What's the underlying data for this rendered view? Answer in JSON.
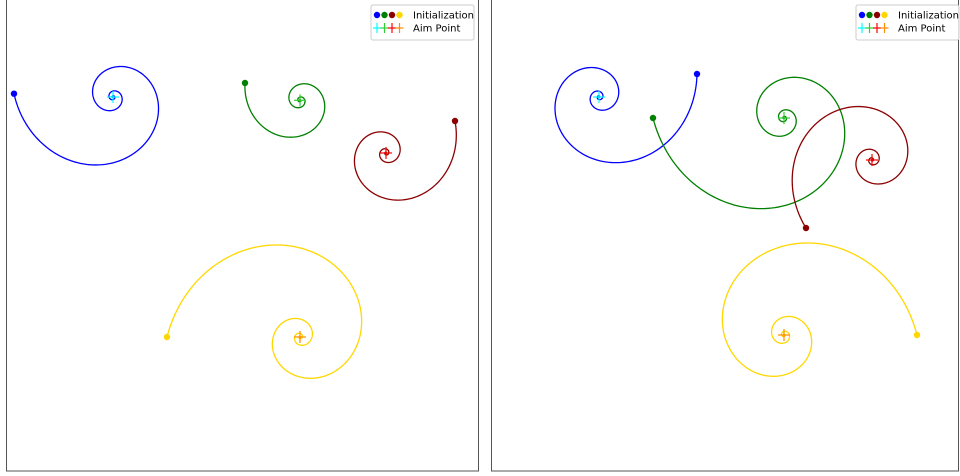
{
  "chart_data": [
    {
      "type": "line",
      "panel": "left",
      "title": "",
      "xlabel": "",
      "ylabel": "",
      "grid": false,
      "axis_ticks": false,
      "legend_position": "top-right",
      "legend": {
        "entries": [
          {
            "label": "Initialization",
            "marker": "dot",
            "colors": [
              "#0000ff",
              "#008000",
              "#8b0000",
              "#ffd700"
            ]
          },
          {
            "label": "Aim Point",
            "marker": "plus",
            "colors": [
              "#00ffff",
              "#32cd32",
              "#ff0000",
              "#ff8c00"
            ]
          }
        ]
      },
      "series": [
        {
          "color": "#0000ff",
          "aim_color": "#00ffff",
          "aim_point": [
            0,
            0
          ],
          "start": [
            -99,
            3.3
          ],
          "turns": 6.9,
          "direction": "ccw"
        },
        {
          "color": "#008000",
          "aim_color": "#32cd32",
          "aim_point": [
            187,
            -3.3
          ],
          "start": [
            132,
            14
          ],
          "turns": 7.8,
          "direction": "ccw"
        },
        {
          "color": "#8b0000",
          "aim_color": "#ff0000",
          "aim_point": [
            273,
            -56
          ],
          "start": [
            342,
            -24
          ],
          "turns": 7.4,
          "direction": "cw"
        },
        {
          "color": "#ffd700",
          "aim_color": "#ff8c00",
          "aim_point": [
            187,
            -240
          ],
          "start": [
            54,
            -240
          ],
          "turns": 7.6,
          "direction": "cw"
        }
      ]
    },
    {
      "type": "line",
      "panel": "right",
      "title": "",
      "xlabel": "",
      "ylabel": "",
      "grid": false,
      "axis_ticks": false,
      "legend_position": "top-right",
      "legend": {
        "entries": [
          {
            "label": "Initialization",
            "marker": "dot",
            "colors": [
              "#0000ff",
              "#008000",
              "#8b0000",
              "#ffd700"
            ]
          },
          {
            "label": "Aim Point",
            "marker": "plus",
            "colors": [
              "#00ffff",
              "#32cd32",
              "#ff0000",
              "#ff8c00"
            ]
          }
        ]
      },
      "series": [
        {
          "color": "#0000ff",
          "aim_color": "#00ffff",
          "aim_point": [
            0,
            0
          ],
          "start": [
            98,
            23
          ],
          "turns": 6.6,
          "direction": "cw"
        },
        {
          "color": "#008000",
          "aim_color": "#32cd32",
          "aim_point": [
            185,
            -21
          ],
          "start": [
            54,
            -21
          ],
          "turns": 7.8,
          "direction": "ccw"
        },
        {
          "color": "#8b0000",
          "aim_color": "#ff0000",
          "aim_point": [
            273,
            -63
          ],
          "start": [
            207,
            -131
          ],
          "turns": 7.4,
          "direction": "cw"
        },
        {
          "color": "#ffd700",
          "aim_color": "#ff8c00",
          "aim_point": [
            185,
            -238
          ],
          "start": [
            318,
            -238
          ],
          "turns": 7.6,
          "direction": "ccw"
        }
      ]
    }
  ]
}
